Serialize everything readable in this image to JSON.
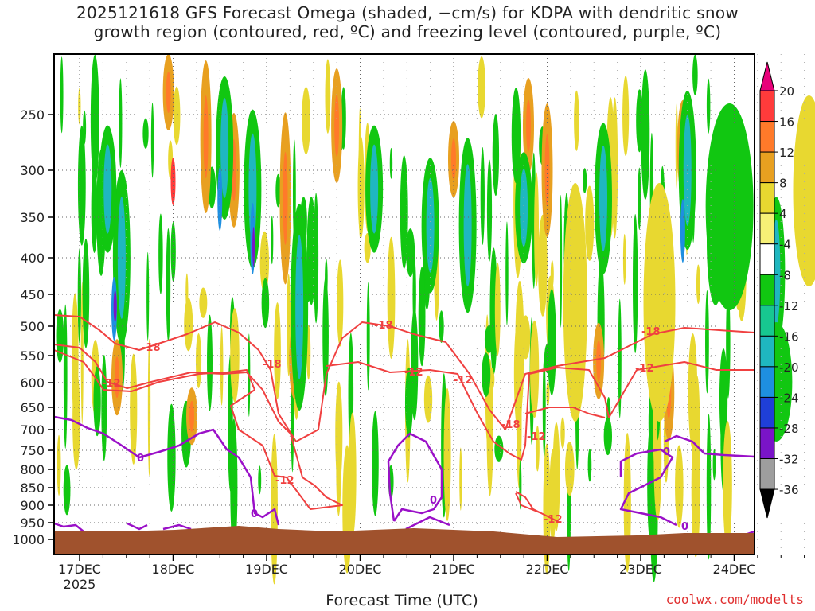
{
  "title": {
    "line1": "2025121618 GFS Forecast Omega (shaded, −cm/s) for KDPA with dendritic snow",
    "line2": "growth region (contoured, red, ºC) and freezing level (contoured, purple, ºC)"
  },
  "credit": "coolwx.com/modelts",
  "chart_data": {
    "type": "heatmap",
    "xlabel": "Forecast Time (UTC)",
    "ylabel": "",
    "x_ticks": [
      "17DEC",
      "18DEC",
      "19DEC",
      "20DEC",
      "21DEC",
      "22DEC",
      "23DEC",
      "24DEC"
    ],
    "x_year_label": "2025",
    "y_ticks": [
      250,
      300,
      350,
      400,
      450,
      500,
      550,
      600,
      650,
      700,
      750,
      800,
      850,
      900,
      950,
      1000
    ],
    "y_axis": "pressure (mb), reversed",
    "grid": true,
    "colorbar": {
      "labels": [
        20,
        16,
        12,
        8,
        4,
        -4,
        -8,
        -12,
        -16,
        -20,
        -24,
        -28,
        -32,
        -36
      ],
      "colors": [
        "#e8007a",
        "#ff3b3b",
        "#ff7a2a",
        "#e8a020",
        "#e8d830",
        "#f6f076",
        "#ffffff",
        "#11c711",
        "#17c890",
        "#1fb7c0",
        "#1e8fe0",
        "#1f3fd8",
        "#7a14c8",
        "#9e9e9e",
        "#000000"
      ]
    },
    "omega_colors": {
      "rise_weak": "#e8d830",
      "rise_mod": "#e8a020",
      "rise_strong": "#ff7a2a",
      "rise_extreme": "#ff3b3b",
      "sink_weak": "#11c711",
      "sink_mod": "#1fb7c0",
      "sink_strong": "#1e8fe0",
      "sink_extreme": "#7a14c8"
    },
    "contour_labels": {
      "red": [
        "-18",
        "-12",
        "-18",
        "-12",
        "-18",
        "-12",
        "-18",
        "-12",
        "-12",
        "-18",
        "-12",
        "-12"
      ],
      "purple": [
        "0",
        "0",
        "0",
        "0",
        "0"
      ]
    },
    "contour_colors": {
      "red": "#f04040",
      "purple": "#9a10c8",
      "terrain": "#a0522d"
    }
  }
}
